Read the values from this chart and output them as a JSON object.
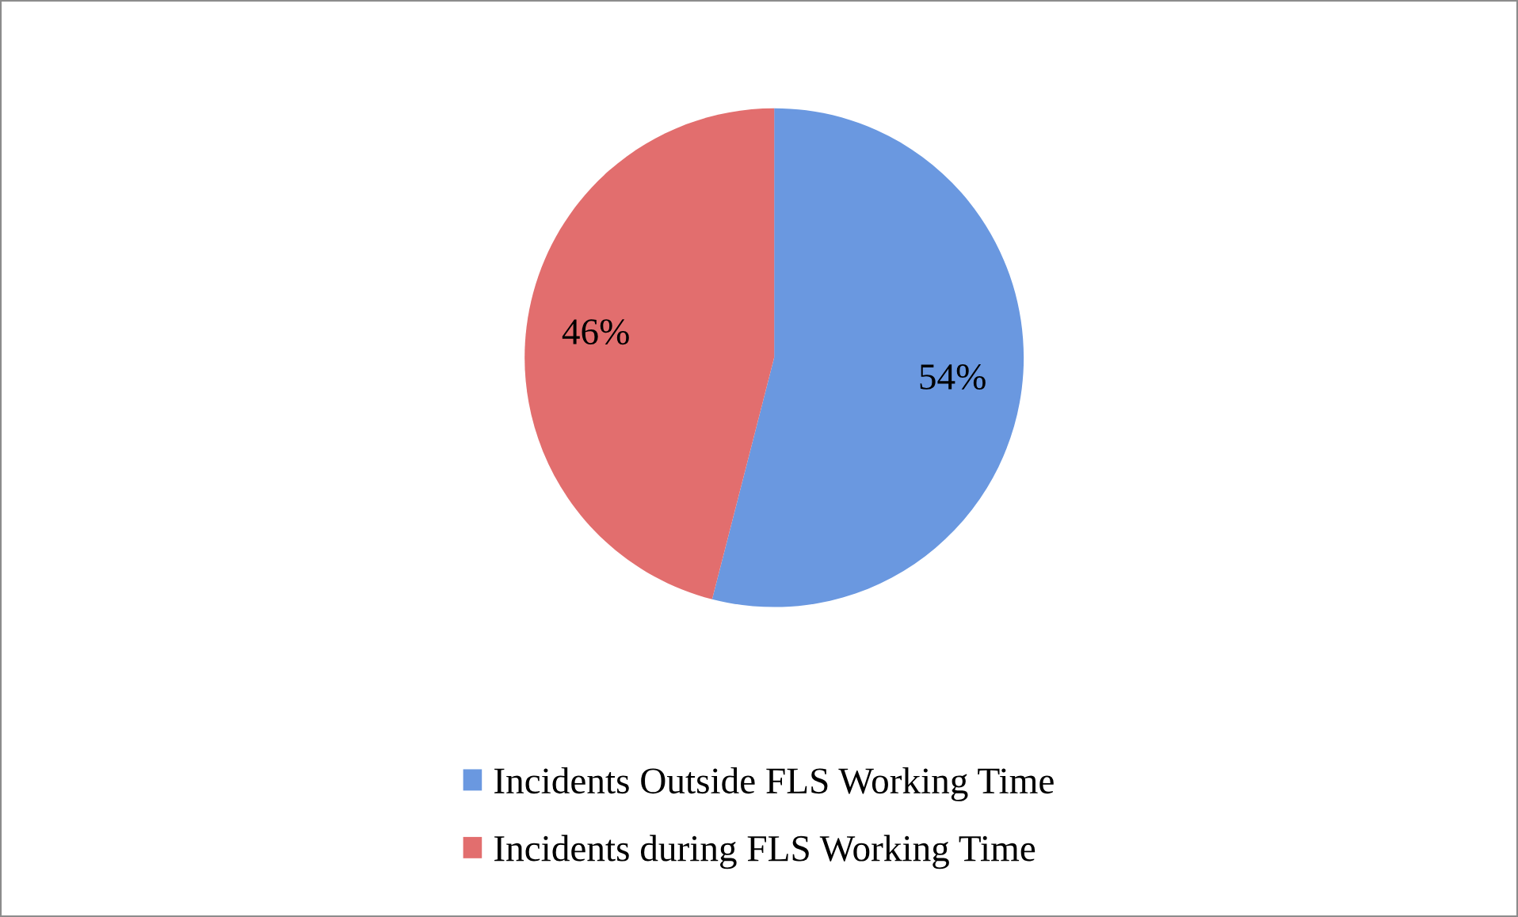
{
  "chart_data": {
    "type": "pie",
    "categories": [
      "Incidents Outside FLS Working Time",
      "Incidents during FLS Working Time"
    ],
    "values": [
      54,
      46
    ],
    "colors": [
      "#6a98e0",
      "#e26e6e"
    ],
    "value_labels": [
      "54%",
      "46%"
    ],
    "legend": "bottom"
  }
}
